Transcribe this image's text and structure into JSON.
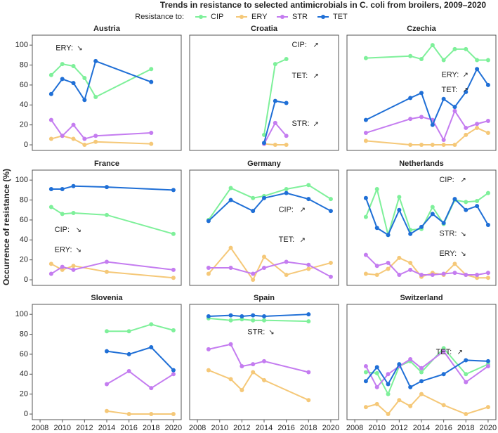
{
  "chart_data": {
    "type": "line",
    "title": "Trends in resistance to selected antimicrobials in C. coli from broilers, 2009–2020",
    "legend_title": "Resistance to:",
    "ylabel": "Occurrence of resistance (%)",
    "series": [
      {
        "name": "CIP",
        "color": "#7ef09a"
      },
      {
        "name": "ERY",
        "color": "#f5c878"
      },
      {
        "name": "STR",
        "color": "#c47cf0"
      },
      {
        "name": "TET",
        "color": "#1f6fd6"
      }
    ],
    "xlim": [
      2007.3,
      2020.7
    ],
    "ylim": [
      -5.6,
      110
    ],
    "xticks": [
      2008,
      2010,
      2012,
      2014,
      2016,
      2018,
      2020
    ],
    "yticks": [
      0,
      20,
      40,
      60,
      80,
      100
    ],
    "facets": [
      {
        "title": "Austria",
        "x": [
          2009,
          2010,
          2011,
          2012,
          2013,
          2018
        ],
        "values": [
          [
            70,
            81,
            79,
            67,
            48,
            76
          ],
          [
            6,
            9,
            6,
            0,
            3,
            1
          ],
          [
            25,
            9,
            20,
            6,
            9,
            12
          ],
          [
            51,
            66,
            62,
            45,
            84,
            63
          ]
        ],
        "annotations": [
          {
            "label": "ERY:",
            "arrow": "↘",
            "x": 2009.4,
            "y": 97
          }
        ]
      },
      {
        "title": "Croatia",
        "x": [
          2014,
          2015,
          2016
        ],
        "values": [
          [
            10,
            81,
            86
          ],
          [
            1,
            0,
            0
          ],
          [
            1,
            22,
            9
          ],
          [
            2,
            44,
            42
          ]
        ],
        "annotations": [
          {
            "label": "CIP:",
            "arrow": "↗",
            "x": 2016.5,
            "y": 100
          },
          {
            "label": "TET:",
            "arrow": "↗",
            "x": 2016.5,
            "y": 69
          },
          {
            "label": "STR:",
            "arrow": "↗",
            "x": 2016.5,
            "y": 21
          }
        ]
      },
      {
        "title": "Czechia",
        "x": [
          2009,
          2013,
          2014,
          2015,
          2016,
          2017,
          2018,
          2019,
          2020
        ],
        "values": [
          [
            87,
            89,
            86,
            100,
            85,
            96,
            96,
            85,
            85
          ],
          [
            4,
            0,
            0,
            0,
            0,
            0,
            10,
            17,
            12
          ],
          [
            12,
            26,
            28,
            25,
            5,
            34,
            17,
            21,
            24
          ],
          [
            25,
            47,
            52,
            20,
            46,
            38,
            53,
            76,
            60
          ]
        ],
        "annotations": [
          {
            "label": "ERY:",
            "arrow": "↗",
            "x": 2015.8,
            "y": 70
          },
          {
            "label": "TET:",
            "arrow": "↗",
            "x": 2015.8,
            "y": 55
          }
        ]
      },
      {
        "title": "France",
        "x": [
          2009,
          2010,
          2011,
          2014,
          2020
        ],
        "values": [
          [
            73,
            66,
            67,
            65,
            46
          ],
          [
            16,
            10,
            14,
            8,
            2
          ],
          [
            6,
            13,
            10,
            18,
            10
          ],
          [
            91,
            91,
            94,
            93,
            90
          ]
        ],
        "annotations": [
          {
            "label": "CIP:",
            "arrow": "↘",
            "x": 2009.3,
            "y": 50
          },
          {
            "label": "ERY:",
            "arrow": "↘",
            "x": 2009.3,
            "y": 30
          }
        ]
      },
      {
        "title": "Germany",
        "x": [
          2009,
          2011,
          2013,
          2014,
          2016,
          2018,
          2020
        ],
        "values": [
          [
            60,
            92,
            82,
            84,
            91,
            95,
            81
          ],
          [
            6,
            32,
            0,
            23,
            5,
            11,
            17
          ],
          [
            12,
            12,
            6,
            12,
            18,
            15,
            3
          ],
          [
            59,
            80,
            69,
            82,
            87,
            81,
            69
          ]
        ],
        "annotations": [
          {
            "label": "CIP:",
            "arrow": "↗",
            "x": 2015.3,
            "y": 70
          },
          {
            "label": "TET:",
            "arrow": "↗",
            "x": 2015.3,
            "y": 40
          }
        ]
      },
      {
        "title": "Netherlands",
        "x": [
          2009,
          2010,
          2011,
          2012,
          2013,
          2014,
          2015,
          2016,
          2017,
          2018,
          2019,
          2020
        ],
        "values": [
          [
            63,
            91,
            45,
            83,
            50,
            51,
            73,
            56,
            80,
            78,
            79,
            87
          ],
          [
            6,
            5,
            11,
            22,
            17,
            3,
            7,
            5,
            16,
            5,
            2,
            2
          ],
          [
            25,
            14,
            17,
            5,
            10,
            5,
            5,
            6,
            7,
            5,
            5,
            7
          ],
          [
            82,
            52,
            45,
            70,
            46,
            53,
            66,
            57,
            81,
            70,
            74,
            55
          ]
        ],
        "annotations": [
          {
            "label": "CIP:",
            "arrow": "↗",
            "x": 2015.6,
            "y": 100
          },
          {
            "label": "STR:",
            "arrow": "↘",
            "x": 2015.6,
            "y": 46
          },
          {
            "label": "ERY:",
            "arrow": "↘",
            "x": 2015.6,
            "y": 26
          }
        ]
      },
      {
        "title": "Slovenia",
        "x": [
          2014,
          2016,
          2018,
          2020
        ],
        "values": [
          [
            83,
            83,
            90,
            84
          ],
          [
            3,
            0,
            0,
            0
          ],
          [
            30,
            43,
            26,
            40
          ],
          [
            63,
            60,
            67,
            44
          ]
        ],
        "annotations": []
      },
      {
        "title": "Spain",
        "x": [
          2009,
          2011,
          2012,
          2013,
          2014,
          2018
        ],
        "values": [
          [
            96,
            94,
            95,
            94,
            94,
            93
          ],
          [
            44,
            35,
            24,
            42,
            34,
            14
          ],
          [
            65,
            70,
            48,
            50,
            53,
            42
          ],
          [
            98,
            99,
            98,
            99,
            98,
            100
          ]
        ],
        "annotations": [
          {
            "label": "STR:",
            "arrow": "↘",
            "x": 2012.5,
            "y": 82
          }
        ]
      },
      {
        "title": "Switzerland",
        "x": [
          2009,
          2010,
          2011,
          2012,
          2013,
          2014,
          2016,
          2018,
          2020
        ],
        "values": [
          [
            42,
            41,
            20,
            48,
            53,
            42,
            66,
            40,
            50
          ],
          [
            7,
            10,
            0,
            14,
            8,
            20,
            9,
            0,
            7
          ],
          [
            48,
            27,
            40,
            48,
            55,
            46,
            63,
            32,
            48
          ],
          [
            33,
            47,
            30,
            50,
            27,
            33,
            40,
            54,
            53
          ]
        ],
        "annotations": [
          {
            "label": "TET:",
            "arrow": "↗",
            "x": 2015.3,
            "y": 62
          }
        ]
      }
    ]
  }
}
